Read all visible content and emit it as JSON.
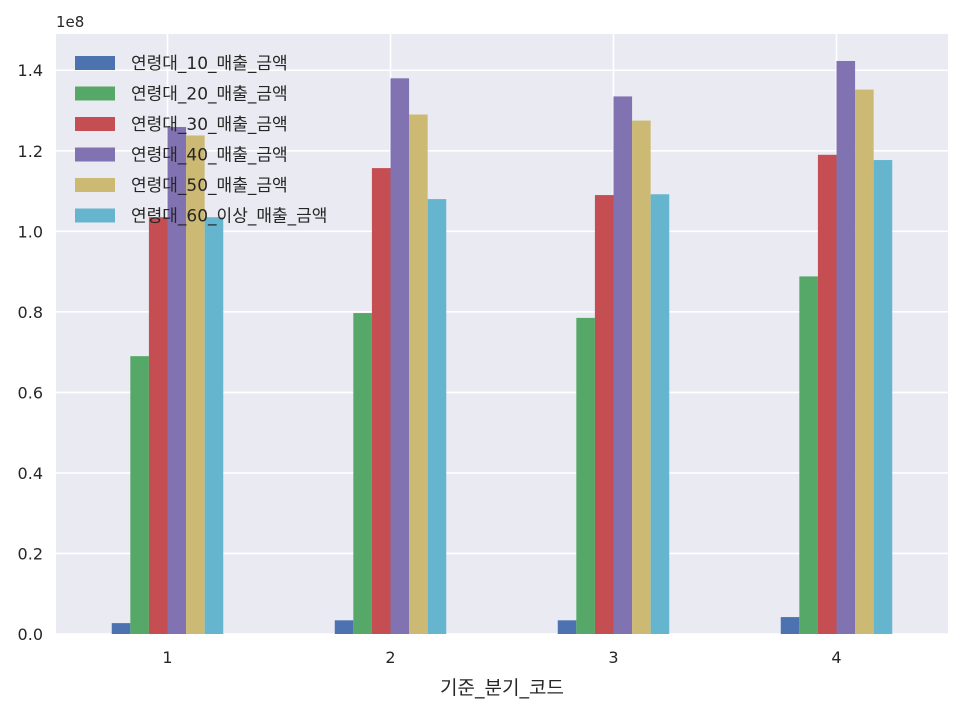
{
  "chart_data": {
    "type": "bar",
    "xlabel": "기준_분기_코드",
    "ylabel": "",
    "y_offset_label": "1e8",
    "ylim": [
      0,
      1.49
    ],
    "y_ticks": [
      "0.0",
      "0.2",
      "0.4",
      "0.6",
      "0.8",
      "1.0",
      "1.2",
      "1.4"
    ],
    "y_tick_values": [
      0,
      0.2,
      0.4,
      0.6,
      0.8,
      1.0,
      1.2,
      1.4
    ],
    "categories": [
      "1",
      "2",
      "3",
      "4"
    ],
    "grid": true,
    "legend_position": "top-left",
    "background": "#EAEAF2",
    "series": [
      {
        "name": "연령대_10_매출_금액",
        "color": "#4C72B0",
        "values": [
          0.027,
          0.034,
          0.034,
          0.042
        ]
      },
      {
        "name": "연령대_20_매출_금액",
        "color": "#55A868",
        "values": [
          0.69,
          0.797,
          0.785,
          0.888
        ]
      },
      {
        "name": "연령대_30_매출_금액",
        "color": "#C44E52",
        "values": [
          1.035,
          1.157,
          1.09,
          1.19
        ]
      },
      {
        "name": "연령대_40_매출_금액",
        "color": "#8172B2",
        "values": [
          1.259,
          1.38,
          1.335,
          1.423
        ]
      },
      {
        "name": "연령대_50_매출_금액",
        "color": "#CCB974",
        "values": [
          1.238,
          1.29,
          1.275,
          1.352
        ]
      },
      {
        "name": "연령대_60_이상_매출_금액",
        "color": "#64B5CD",
        "values": [
          1.035,
          1.08,
          1.092,
          1.177
        ]
      }
    ]
  }
}
